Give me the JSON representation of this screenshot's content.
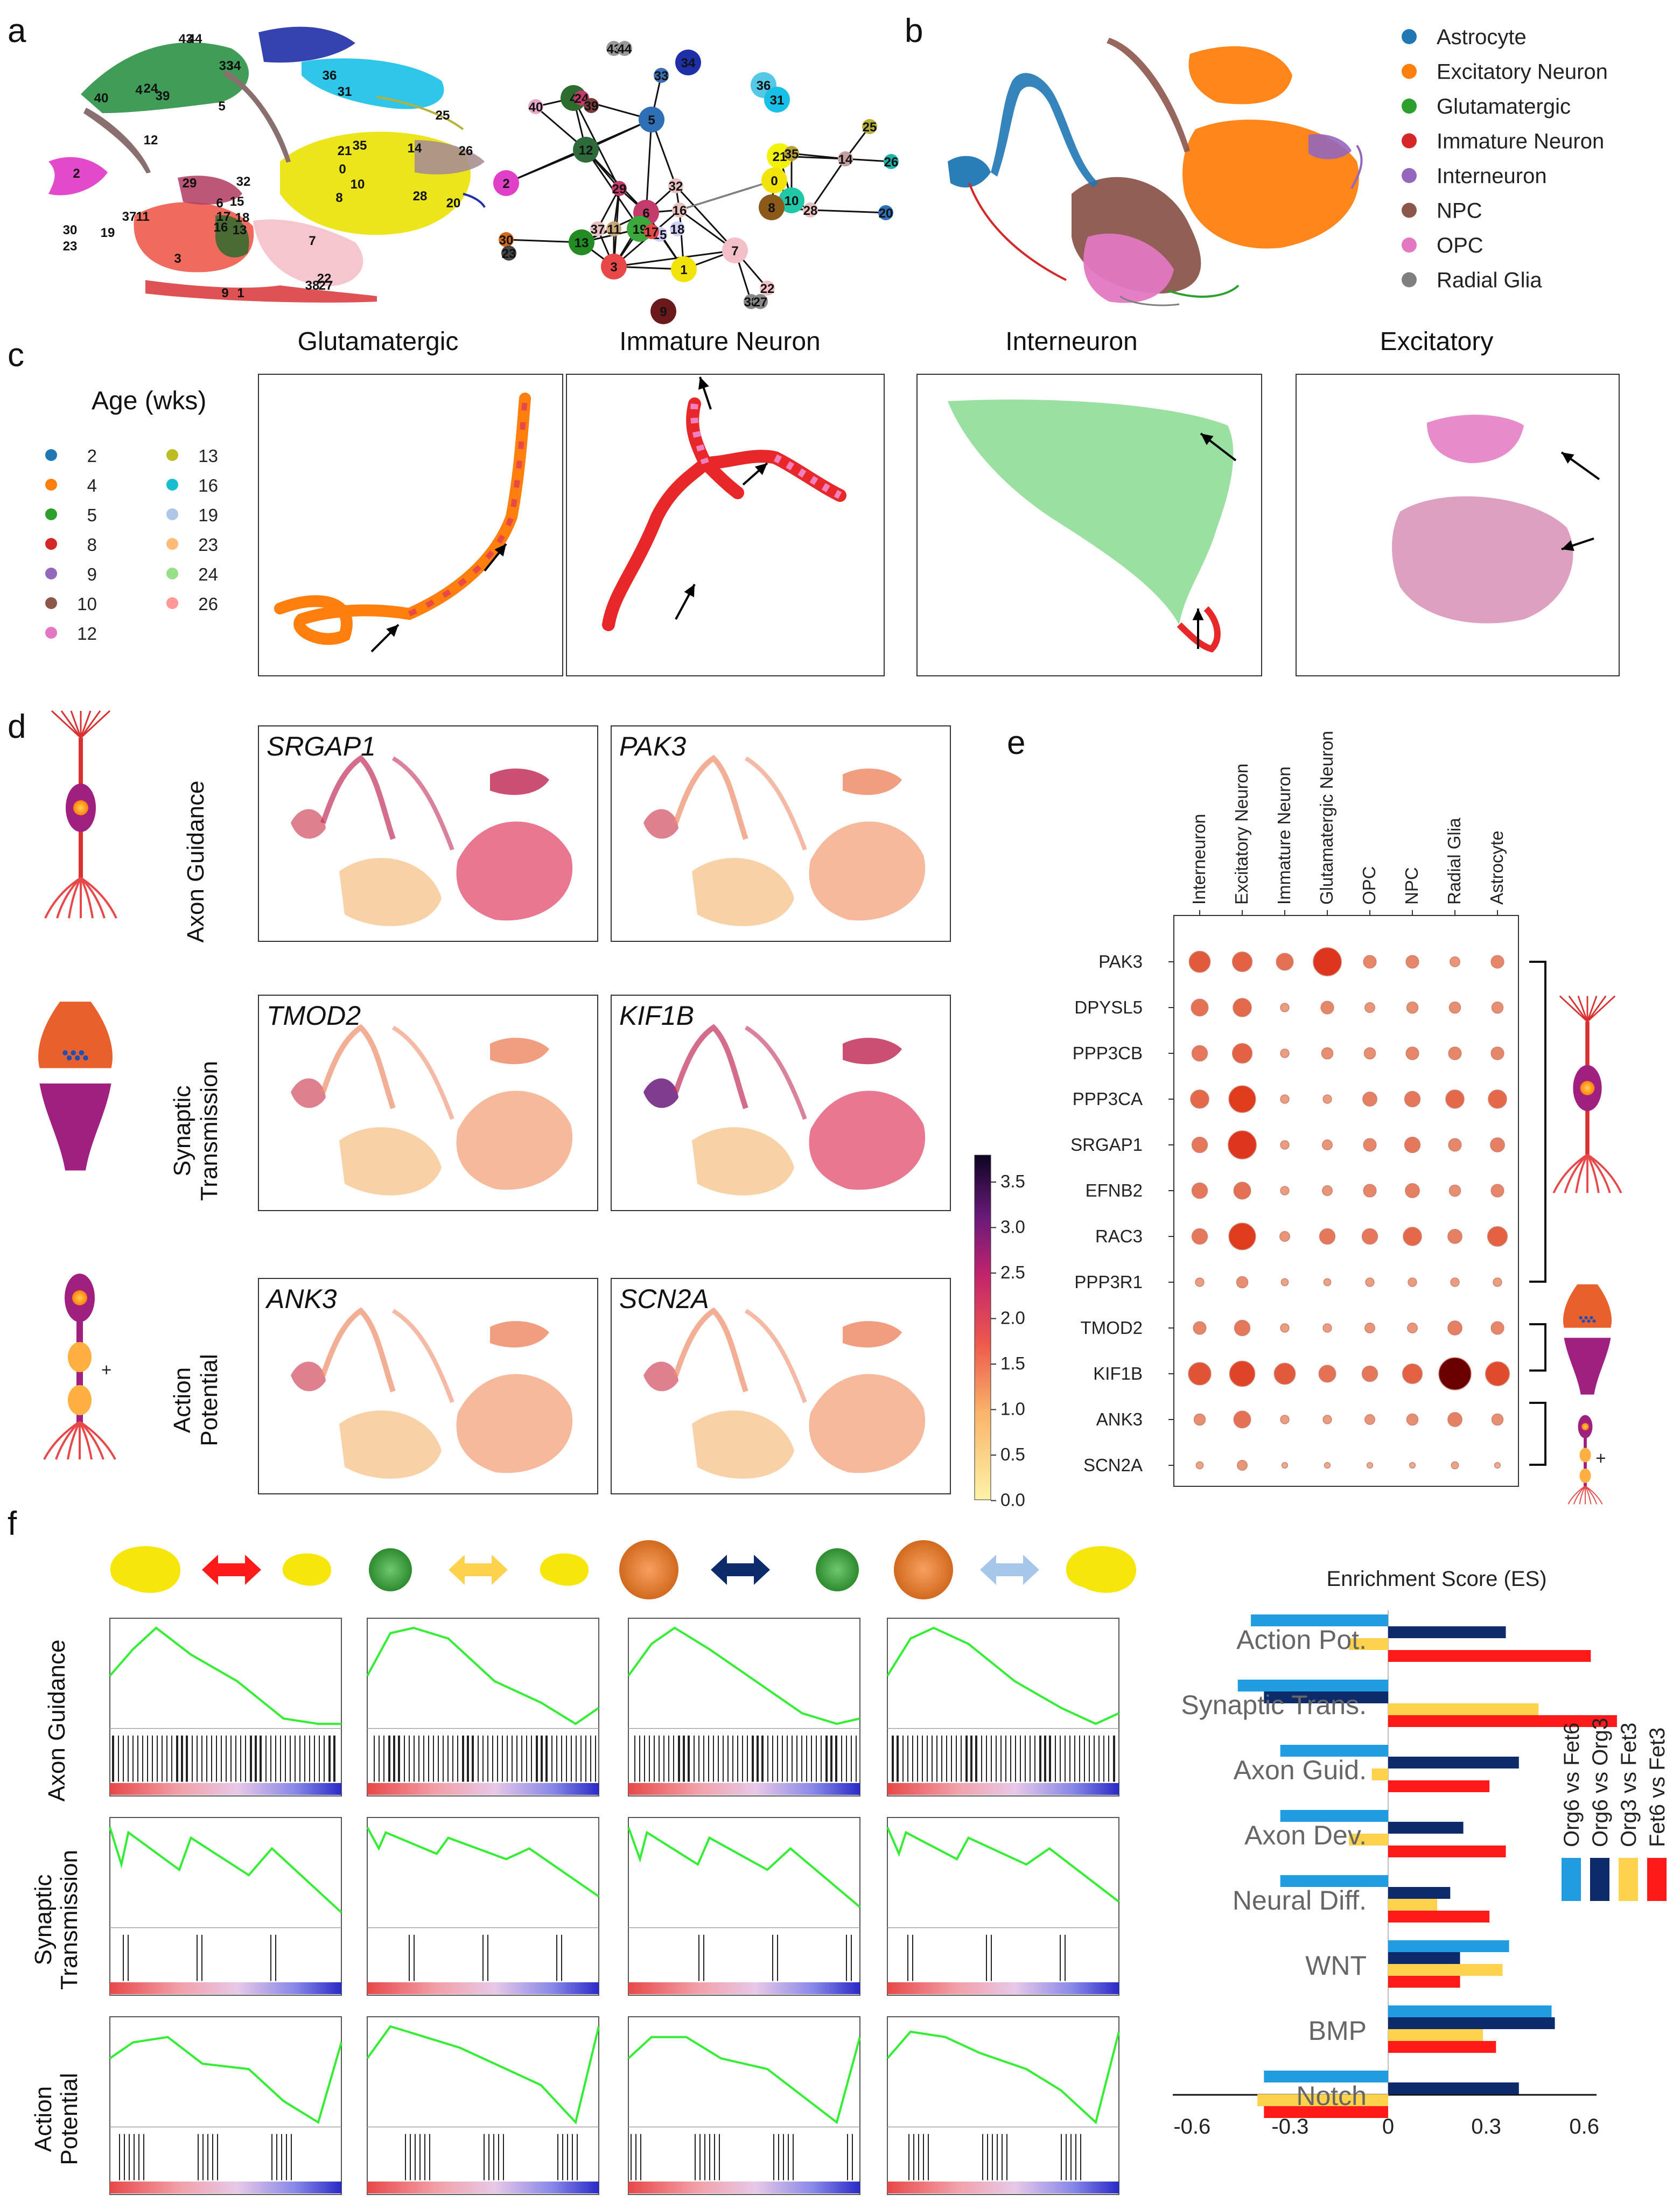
{
  "panel_labels": [
    "a",
    "b",
    "c",
    "d",
    "e",
    "f"
  ],
  "panel_a": {
    "umap_labels": [
      "43",
      "44",
      "33",
      "34",
      "40",
      "4",
      "24",
      "39",
      "5",
      "36",
      "31",
      "25",
      "12",
      "21",
      "35",
      "14",
      "26",
      "2",
      "29",
      "32",
      "0",
      "10",
      "8",
      "28",
      "20",
      "30",
      "23",
      "19",
      "37",
      "11",
      "6",
      "15",
      "16",
      "13",
      "7",
      "3",
      "22",
      "38",
      "27",
      "17",
      "18",
      "9",
      "1"
    ],
    "graph_nodes": [
      {
        "id": "43",
        "color": "#999999"
      },
      {
        "id": "44",
        "color": "#999999"
      },
      {
        "id": "33",
        "color": "#3b6fb6"
      },
      {
        "id": "34",
        "color": "#1f2fa8"
      },
      {
        "id": "40",
        "color": "#e8a6c8"
      },
      {
        "id": "4",
        "color": "#2e6b2e"
      },
      {
        "id": "24",
        "color": "#c23b6b"
      },
      {
        "id": "39",
        "color": "#7a3b3b"
      },
      {
        "id": "5",
        "color": "#2f6fb6"
      },
      {
        "id": "36",
        "color": "#55c8e8"
      },
      {
        "id": "31",
        "color": "#18c0e8"
      },
      {
        "id": "25",
        "color": "#b7b13a"
      },
      {
        "id": "12",
        "color": "#2e6b3b"
      },
      {
        "id": "2",
        "color": "#e040c8"
      },
      {
        "id": "21",
        "color": "#f2f20a"
      },
      {
        "id": "35",
        "color": "#b7a03a"
      },
      {
        "id": "14",
        "color": "#c5a0a0"
      },
      {
        "id": "26",
        "color": "#20b2aa"
      },
      {
        "id": "0",
        "color": "#f2e40a"
      },
      {
        "id": "10",
        "color": "#20c8a8"
      },
      {
        "id": "8",
        "color": "#8b5a1a"
      },
      {
        "id": "28",
        "color": "#e8c0c0"
      },
      {
        "id": "20",
        "color": "#2f6fb6"
      },
      {
        "id": "32",
        "color": "#e8c0c0"
      },
      {
        "id": "6",
        "color": "#c23b6b"
      },
      {
        "id": "16",
        "color": "#e8c0c0"
      },
      {
        "id": "29",
        "color": "#c23b6b"
      },
      {
        "id": "30",
        "color": "#d2691e"
      },
      {
        "id": "23",
        "color": "#444444"
      },
      {
        "id": "37",
        "color": "#e8c0c0"
      },
      {
        "id": "11",
        "color": "#c8a878"
      },
      {
        "id": "19",
        "color": "#3aa83a"
      },
      {
        "id": "15",
        "color": "#d0d0ff"
      },
      {
        "id": "13",
        "color": "#228b22"
      },
      {
        "id": "3",
        "color": "#e84848"
      },
      {
        "id": "7",
        "color": "#f4c0c8"
      },
      {
        "id": "22",
        "color": "#f4c0c8"
      },
      {
        "id": "38",
        "color": "#888888"
      },
      {
        "id": "27",
        "color": "#888888"
      },
      {
        "id": "9",
        "color": "#6b1a1a"
      },
      {
        "id": "1",
        "color": "#f2e40a"
      },
      {
        "id": "17",
        "color": "#e84848"
      },
      {
        "id": "18",
        "color": "#d0d0ff"
      }
    ]
  },
  "panel_b": {
    "legend": [
      {
        "label": "Astrocyte",
        "color": "#1f77b4"
      },
      {
        "label": "Excitatory Neuron",
        "color": "#ff7f0e"
      },
      {
        "label": "Glutamatergic",
        "color": "#2ca02c"
      },
      {
        "label": "Immature Neuron",
        "color": "#d62728"
      },
      {
        "label": "Interneuron",
        "color": "#9467bd"
      },
      {
        "label": "NPC",
        "color": "#8c564b"
      },
      {
        "label": "OPC",
        "color": "#e377c2"
      },
      {
        "label": "Radial Glia",
        "color": "#7f7f7f"
      }
    ]
  },
  "panel_c": {
    "legend_title": "Age (wks)",
    "ages": [
      {
        "label": "2",
        "color": "#1f77b4"
      },
      {
        "label": "4",
        "color": "#ff7f0e"
      },
      {
        "label": "5",
        "color": "#2ca02c"
      },
      {
        "label": "8",
        "color": "#d62728"
      },
      {
        "label": "9",
        "color": "#9467bd"
      },
      {
        "label": "10",
        "color": "#8c564b"
      },
      {
        "label": "12",
        "color": "#e377c2"
      },
      {
        "label": "13",
        "color": "#bcbd22"
      },
      {
        "label": "16",
        "color": "#17becf"
      },
      {
        "label": "19",
        "color": "#aec7e8"
      },
      {
        "label": "23",
        "color": "#ffbb78"
      },
      {
        "label": "24",
        "color": "#98df8a"
      },
      {
        "label": "26",
        "color": "#ff9896"
      }
    ],
    "titles": [
      "Glutamatergic",
      "Immature Neuron",
      "Interneuron",
      "Excitatory"
    ]
  },
  "panel_d": {
    "row_labels": [
      [
        "Axon Guidance"
      ],
      [
        "Synaptic",
        "Transmission"
      ],
      [
        "Action",
        "Potential"
      ]
    ],
    "genes": [
      "SRGAP1",
      "PAK3",
      "TMOD2",
      "KIF1B",
      "ANK3",
      "SCN2A"
    ],
    "colorbar_ticks": [
      "3.5",
      "3.0",
      "2.5",
      "2.0",
      "1.5",
      "1.0",
      "0.5",
      "0.0"
    ],
    "axis_mark": "+"
  },
  "panel_e": {
    "columns": [
      "Interneuron",
      "Excitatory Neuron",
      "Immature Neuron",
      "Glutamatergic Neuron",
      "OPC",
      "NPC",
      "Radial Glia",
      "Astrocyte"
    ],
    "rows": [
      "PAK3",
      "DPYSL5",
      "PPP3CB",
      "PPP3CA",
      "SRGAP1",
      "EFNB2",
      "RAC3",
      "PPP3R1",
      "TMOD2",
      "KIF1B",
      "ANK3",
      "SCN2A"
    ],
    "values": [
      [
        0.6,
        0.55,
        0.45,
        0.85,
        0.3,
        0.3,
        0.2,
        0.3
      ],
      [
        0.45,
        0.5,
        0.15,
        0.3,
        0.2,
        0.25,
        0.25,
        0.25
      ],
      [
        0.4,
        0.55,
        0.15,
        0.25,
        0.25,
        0.3,
        0.3,
        0.3
      ],
      [
        0.5,
        0.8,
        0.15,
        0.15,
        0.35,
        0.4,
        0.5,
        0.5
      ],
      [
        0.4,
        0.85,
        0.15,
        0.2,
        0.3,
        0.4,
        0.3,
        0.35
      ],
      [
        0.4,
        0.45,
        0.15,
        0.2,
        0.3,
        0.35,
        0.25,
        0.3
      ],
      [
        0.4,
        0.8,
        0.2,
        0.4,
        0.4,
        0.5,
        0.35,
        0.55
      ],
      [
        0.15,
        0.25,
        0.1,
        0.1,
        0.15,
        0.15,
        0.15,
        0.15
      ],
      [
        0.3,
        0.4,
        0.15,
        0.15,
        0.2,
        0.2,
        0.35,
        0.3
      ],
      [
        0.65,
        0.75,
        0.6,
        0.45,
        0.4,
        0.55,
        1.0,
        0.7
      ],
      [
        0.25,
        0.45,
        0.15,
        0.15,
        0.2,
        0.25,
        0.35,
        0.25
      ],
      [
        0.1,
        0.2,
        0.05,
        0.05,
        0.05,
        0.05,
        0.1,
        0.05
      ]
    ],
    "groups": [
      "Axon Guidance",
      "Synaptic Transmission",
      "Action Potential"
    ],
    "axis_mark": "+"
  },
  "panel_f": {
    "row_labels": [
      [
        "Axon Guidance"
      ],
      [
        "Synaptic",
        "Transmission"
      ],
      [
        "Action",
        "Potential"
      ]
    ],
    "comparison_arrow_colors": [
      "#ff1a1a",
      "#ffd24d",
      "#0d2a6b",
      "#a7c7ea"
    ],
    "chart_title": "Enrichment Score (ES)"
  },
  "chart_data": {
    "type": "bar",
    "orientation": "horizontal",
    "title": "Enrichment Score (ES)",
    "categories": [
      "Action Pot.",
      "Synaptic Trans.",
      "Axon Guid.",
      "Axon Dev.",
      "Neural Diff.",
      "WNT",
      "BMP",
      "Notch"
    ],
    "series": [
      {
        "name": "Org6 vs Fet6",
        "color": "#1f9de0",
        "values": [
          -0.42,
          -0.46,
          -0.33,
          -0.33,
          -0.33,
          0.37,
          0.5,
          -0.38
        ]
      },
      {
        "name": "Org6 vs Org3",
        "color": "#0d2a6b",
        "values": [
          0.36,
          -0.38,
          0.4,
          0.23,
          0.19,
          0.22,
          0.51,
          0.4
        ]
      },
      {
        "name": "Org3 vs Fet3",
        "color": "#ffd24d",
        "values": [
          -0.12,
          0.46,
          -0.05,
          -0.12,
          0.15,
          0.35,
          0.29,
          -0.4
        ]
      },
      {
        "name": "Fet6 vs Fet3",
        "color": "#ff1a1a",
        "values": [
          0.62,
          0.7,
          0.31,
          0.36,
          0.31,
          0.22,
          0.33,
          -0.38
        ]
      }
    ],
    "xlim": [
      -0.75,
      0.75
    ],
    "xticks": [
      "-0.6",
      "-0.3",
      "0",
      "0.3",
      "0.6"
    ],
    "xtick_values": [
      -0.6,
      -0.3,
      0,
      0.3,
      0.6
    ]
  }
}
